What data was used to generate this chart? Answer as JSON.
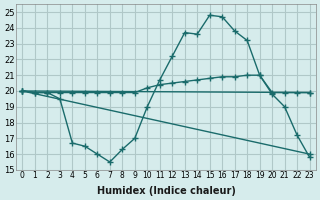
{
  "xlabel": "Humidex (Indice chaleur)",
  "bg_color": "#d6ecec",
  "grid_color": "#b0c8c8",
  "line_color": "#1a6b6b",
  "xlim": [
    -0.5,
    23.5
  ],
  "ylim": [
    15,
    25.5
  ],
  "yticks": [
    15,
    16,
    17,
    18,
    19,
    20,
    21,
    22,
    23,
    24,
    25
  ],
  "xticks": [
    0,
    1,
    2,
    3,
    4,
    5,
    6,
    7,
    8,
    9,
    10,
    11,
    12,
    13,
    14,
    15,
    16,
    17,
    18,
    19,
    20,
    21,
    22,
    23
  ],
  "line1_x": [
    0,
    1,
    2,
    3,
    4,
    5,
    6,
    7,
    8,
    9,
    10,
    11,
    12,
    13,
    14,
    15,
    16,
    17,
    18,
    19,
    20,
    21,
    22,
    23
  ],
  "line1_y": [
    20.0,
    19.9,
    19.9,
    19.5,
    16.7,
    16.5,
    16.0,
    15.5,
    16.3,
    17.0,
    19.0,
    20.7,
    22.2,
    23.7,
    23.6,
    24.8,
    24.7,
    23.8,
    23.2,
    21.0,
    19.8,
    19.0,
    17.2,
    15.8
  ],
  "line2_x": [
    0,
    1,
    2,
    3,
    4,
    5,
    6,
    7,
    8,
    9,
    10,
    11,
    12,
    13,
    14,
    15,
    16,
    17,
    18,
    19,
    20,
    21,
    22,
    23
  ],
  "line2_y": [
    20.0,
    19.9,
    19.9,
    19.9,
    19.9,
    19.9,
    19.9,
    19.9,
    19.9,
    19.9,
    20.2,
    20.4,
    20.5,
    20.6,
    20.7,
    20.8,
    20.9,
    20.9,
    21.0,
    21.0,
    19.9,
    19.9,
    19.9,
    19.9
  ],
  "line3_x": [
    0,
    23
  ],
  "line3_y": [
    20.0,
    19.9
  ],
  "line4_x": [
    0,
    23
  ],
  "line4_y": [
    20.0,
    16.0
  ]
}
